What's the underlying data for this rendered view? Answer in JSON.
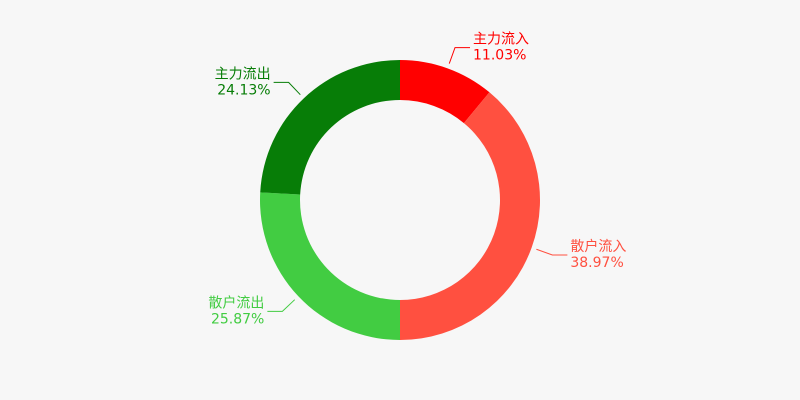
{
  "chart_data": {
    "type": "donut",
    "categories": [
      "主力流入",
      "散户流入",
      "散户流出",
      "主力流出"
    ],
    "values": [
      11.03,
      38.97,
      25.87,
      24.13
    ],
    "value_labels": [
      "11.03%",
      "38.97%",
      "25.87%",
      "24.13%"
    ],
    "colors": [
      "#ff0000",
      "#ff5040",
      "#42cc42",
      "#077d07"
    ]
  }
}
